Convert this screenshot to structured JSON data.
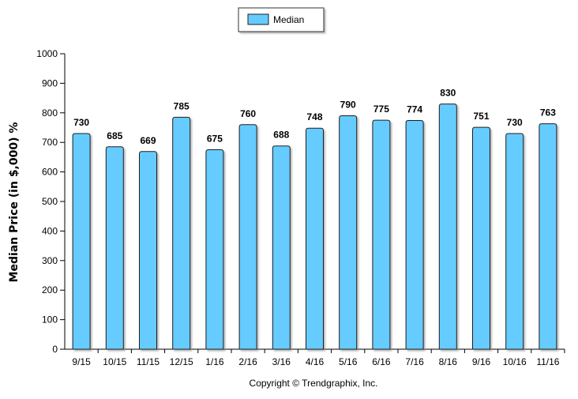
{
  "chart_data": {
    "type": "bar",
    "categories": [
      "9/15",
      "10/15",
      "11/15",
      "12/15",
      "1/16",
      "2/16",
      "3/16",
      "4/16",
      "5/16",
      "6/16",
      "7/16",
      "8/16",
      "9/16",
      "10/16",
      "11/16"
    ],
    "series": [
      {
        "name": "Median",
        "values": [
          730,
          685,
          669,
          785,
          675,
          760,
          688,
          748,
          790,
          775,
          774,
          830,
          751,
          730,
          763
        ]
      }
    ],
    "data_labels": [
      "730",
      "685",
      "669",
      "785",
      "675",
      "760",
      "688",
      "748",
      "790",
      "775",
      "774",
      "830",
      "751",
      "730",
      "763"
    ],
    "ylabel": "Median Price (in $,000) %",
    "xlabel": "",
    "ylim": [
      0,
      1000
    ],
    "yticks": [
      0,
      100,
      200,
      300,
      400,
      500,
      600,
      700,
      800,
      900,
      1000
    ],
    "grid": false,
    "legend_position": "top-center",
    "bar_color": "#66ccff",
    "bar_edge_color": "#1f1f1f"
  },
  "copyright": "Copyright © Trendgraphix, Inc."
}
